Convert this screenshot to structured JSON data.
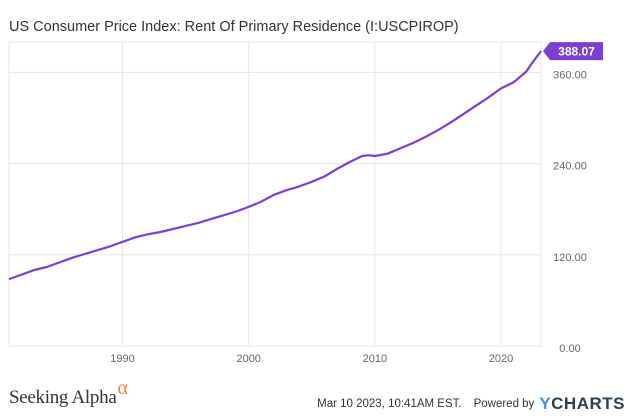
{
  "chart_data": {
    "type": "line",
    "title": "US Consumer Price Index: Rent Of Primary Residence (I:USCPIROP)",
    "xlabel": "",
    "ylabel": "",
    "xlim": [
      1981.0,
      2023.17
    ],
    "ylim": [
      0,
      400
    ],
    "x_ticks": [
      1990,
      2000,
      2010,
      2020
    ],
    "y_ticks": [
      0,
      120,
      240,
      360
    ],
    "y_tick_labels": [
      "0.00",
      "120.00",
      "240.00",
      "360.00"
    ],
    "grid": true,
    "legend": "none",
    "line_color": "#7b3fd1",
    "last_value_label": "388.07",
    "series": [
      {
        "x": [
          1981,
          1982,
          1983,
          1984,
          1985,
          1986,
          1987,
          1988,
          1989,
          1990,
          1991,
          1992,
          1993,
          1994,
          1995,
          1996,
          1997,
          1998,
          1999,
          2000,
          2001,
          2002,
          2003,
          2004,
          2005,
          2006,
          2007,
          2008,
          2009,
          2009.5,
          2010,
          2011,
          2012,
          2013,
          2014,
          2015,
          2016,
          2017,
          2018,
          2019,
          2020,
          2021,
          2022,
          2022.5,
          2023.17
        ],
        "y": [
          88,
          94,
          100,
          104,
          110,
          116,
          121,
          126,
          131,
          137,
          143,
          147,
          150,
          154,
          158,
          162,
          167,
          172,
          177,
          183,
          190,
          199,
          205,
          210,
          216,
          223,
          233,
          242,
          250,
          251,
          250,
          253,
          260,
          267,
          275,
          284,
          294,
          305,
          316,
          327,
          339,
          347,
          361,
          373,
          388.07
        ]
      }
    ]
  },
  "footer": {
    "brand": "Seeking Alpha",
    "brand_symbol": "α",
    "timestamp": "Mar 10 2023, 10:41AM EST.",
    "powered_by": "Powered by",
    "provider": "YCHARTS",
    "provider_icon": "ycharts-logo"
  },
  "colors": {
    "line": "#7b3fd1",
    "grid": "#e6e6e6",
    "axis_text": "#666666",
    "brand_alpha": "#f4823a"
  }
}
